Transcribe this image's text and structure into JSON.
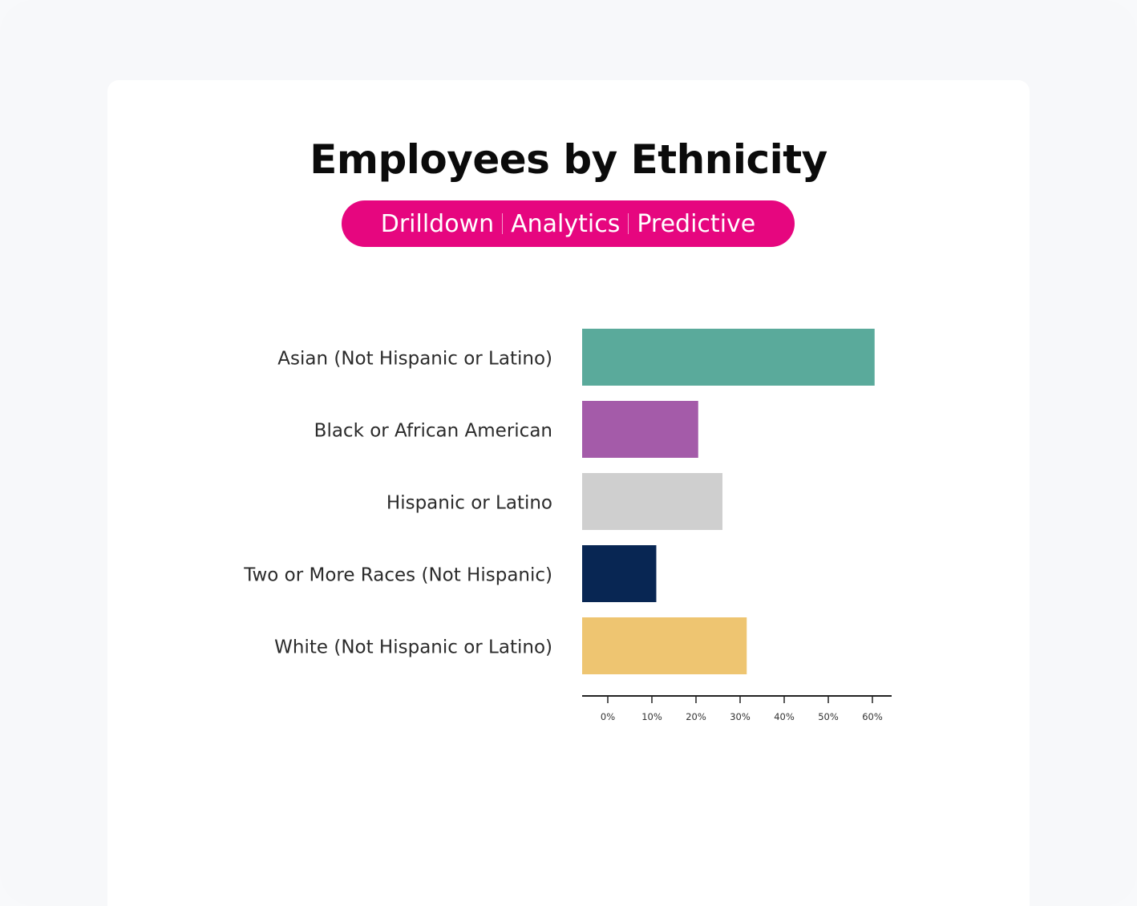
{
  "header": {
    "title": "Employees by Ethnicity",
    "tags": [
      "Drilldown",
      "Analytics",
      "Predictive"
    ],
    "tag_color": "#e6067f"
  },
  "chart_data": {
    "type": "bar",
    "orientation": "horizontal",
    "title": "",
    "xlabel": "",
    "ylabel": "",
    "categories": [
      "Asian (Not Hispanic or Latino)",
      "Black or African American",
      "Hispanic or Latino",
      "Two or More Races (Not Hispanic)",
      "White (Not Hispanic or Latino)"
    ],
    "values": [
      60.5,
      20.5,
      26,
      11,
      31.5
    ],
    "colors": [
      "#5aaa9b",
      "#a45ba9",
      "#cfcfcf",
      "#082653",
      "#eec571"
    ],
    "xlim": [
      -6,
      65
    ],
    "xticks": [
      0,
      10,
      20,
      30,
      40,
      50,
      60
    ],
    "xtick_labels": [
      "0%",
      "10%",
      "20%",
      "30%",
      "40%",
      "50%",
      "60%"
    ],
    "grid": false,
    "legend": "none"
  }
}
